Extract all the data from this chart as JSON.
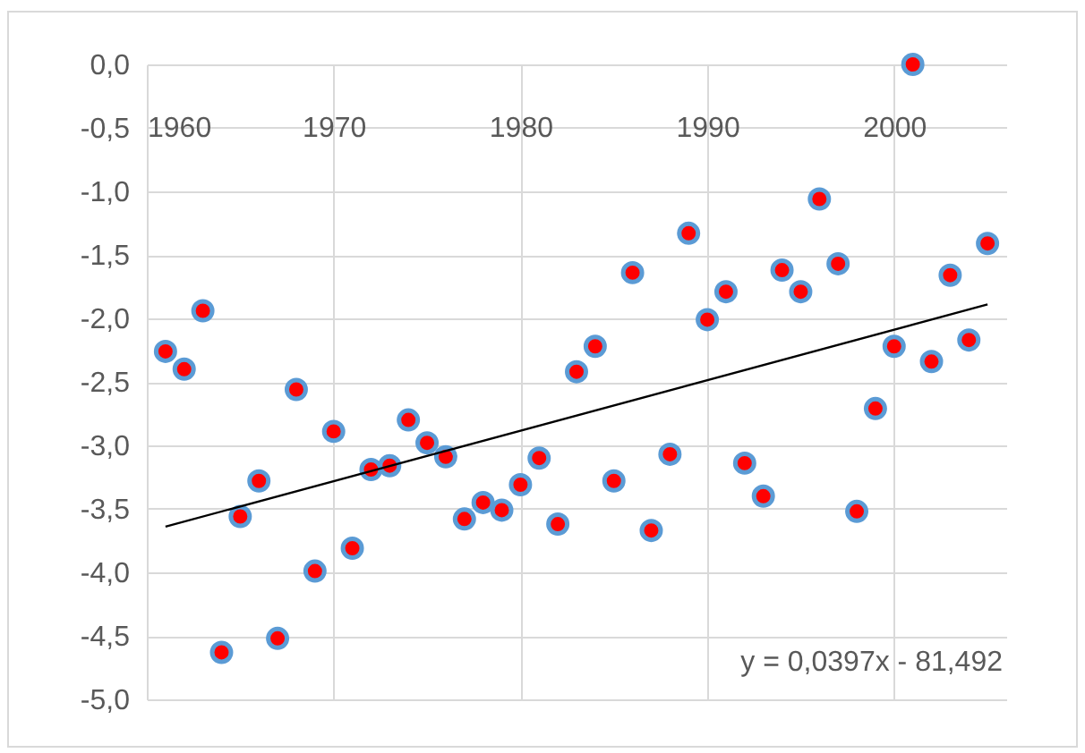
{
  "chart_data": {
    "type": "scatter",
    "x": [
      1961,
      1962,
      1963,
      1964,
      1965,
      1966,
      1967,
      1968,
      1969,
      1970,
      1971,
      1972,
      1973,
      1974,
      1975,
      1976,
      1977,
      1978,
      1979,
      1980,
      1981,
      1982,
      1983,
      1984,
      1985,
      1986,
      1987,
      1988,
      1989,
      1990,
      1991,
      1992,
      1993,
      1994,
      1995,
      1996,
      1997,
      1998,
      1999,
      2000,
      2001,
      2002,
      2003,
      2004,
      2005
    ],
    "series": [
      {
        "color": "#ff0000",
        "marker": "circle",
        "values": [
          -2.26,
          -2.4,
          -1.94,
          -4.63,
          -3.56,
          -3.28,
          -4.52,
          -2.56,
          -3.99,
          -2.89,
          -3.81,
          -3.19,
          -3.16,
          -2.8,
          -2.98,
          -3.09,
          -3.58,
          -3.45,
          -3.51,
          -3.31,
          -3.1,
          -3.62,
          -2.42,
          -2.22,
          -3.28,
          -1.64,
          -3.67,
          -3.07,
          -1.33,
          -2.01,
          -1.79,
          -3.14,
          -3.4,
          -1.62,
          -1.79,
          -1.06,
          -1.57,
          -3.52,
          -2.71,
          -2.22,
          0.0,
          -2.34,
          -1.66,
          -2.17,
          -1.41
        ]
      },
      {
        "type": "line",
        "color": "#000000",
        "x": [
          1961,
          2005
        ],
        "values": [
          -3.64,
          -1.89
        ]
      }
    ],
    "xlim": [
      1960,
      2006
    ],
    "xticks": [
      1960,
      1970,
      1980,
      1990,
      2000
    ],
    "ylim": [
      -5,
      0
    ],
    "yticks": [
      {
        "value": 0,
        "label": "0,0"
      },
      {
        "value": -0.5,
        "label": "-0,5"
      },
      {
        "value": -1,
        "label": "-1,0"
      },
      {
        "value": -1.5,
        "label": "-1,5"
      },
      {
        "value": -2,
        "label": "-2,0"
      },
      {
        "value": -2.5,
        "label": "-2,5"
      },
      {
        "value": -3,
        "label": "-3,0"
      },
      {
        "value": -3.5,
        "label": "-3,5"
      },
      {
        "value": -4,
        "label": "-4,0"
      },
      {
        "value": -4.5,
        "label": "-4,5"
      },
      {
        "value": -5,
        "label": "-5,0"
      }
    ],
    "grid": true,
    "annotations": [
      "y = 0,0397x - 81,492"
    ]
  }
}
